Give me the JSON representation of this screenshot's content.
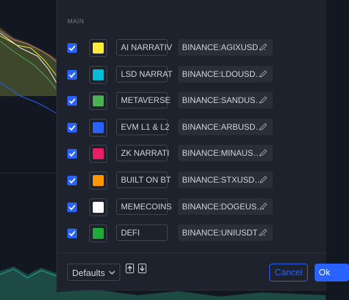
{
  "dialog": {
    "section": "MAIN",
    "rows": [
      {
        "checked": true,
        "color": "#ffeb3b",
        "name": "AI NARRATIV",
        "symbol": "BINANCE:AGIXUSD…"
      },
      {
        "checked": true,
        "color": "#00bcd4",
        "name": "LSD NARRAT",
        "symbol": "BINANCE:LDOUSD…"
      },
      {
        "checked": true,
        "color": "#4caf50",
        "name": "METAVERSE",
        "symbol": "BINANCE:SANDUS…"
      },
      {
        "checked": true,
        "color": "#2962ff",
        "name": "EVM L1 & L2",
        "symbol": "BINANCE:ARBUSD…"
      },
      {
        "checked": true,
        "color": "#e91e63",
        "name": "ZK NARRATI",
        "symbol": "BINANCE:MINAUS…"
      },
      {
        "checked": true,
        "color": "#ff9800",
        "name": "BUILT ON BT",
        "symbol": "BINANCE:STXUSD…"
      },
      {
        "checked": true,
        "color": "#ffffff",
        "name": "MEMECOINS",
        "symbol": "BINANCE:DOGEUS…"
      },
      {
        "checked": true,
        "color": "#1faa3a",
        "name": "DEFI",
        "symbol": "BINANCE:UNIUSDT…"
      }
    ],
    "footer": {
      "defaults": "Defaults",
      "cancel": "Cancel",
      "ok": "Ok"
    }
  }
}
